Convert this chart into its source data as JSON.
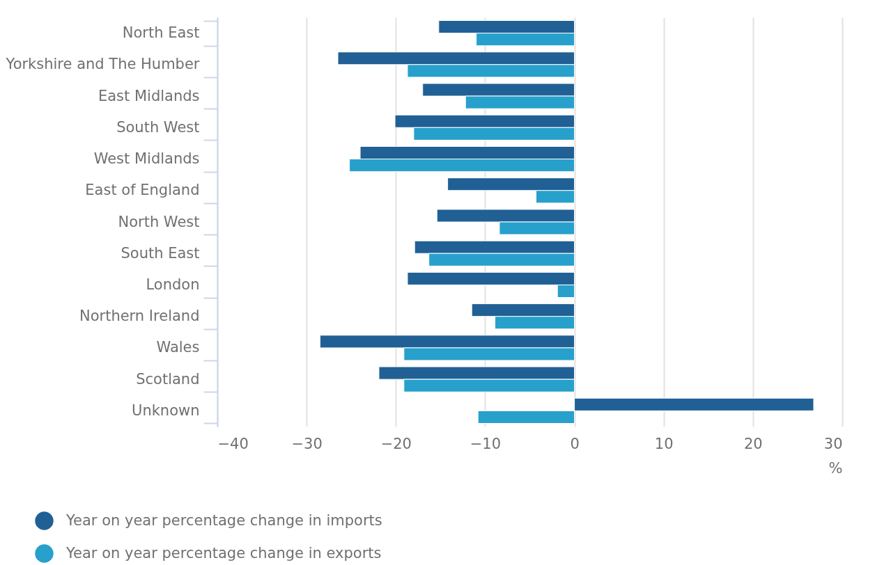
{
  "chart_data": {
    "type": "bar",
    "orientation": "horizontal",
    "xlabel": "%",
    "categories": [
      "North East",
      "Yorkshire and The Humber",
      "East Midlands",
      "South West",
      "West Midlands",
      "East of England",
      "North West",
      "South East",
      "London",
      "Northern Ireland",
      "Wales",
      "Scotland",
      "Unknown"
    ],
    "series": [
      {
        "name": "Year on year percentage change in imports",
        "color": "#206095",
        "values": [
          -15.2,
          -26.5,
          -17.0,
          -20.1,
          -24.0,
          -14.2,
          -15.4,
          -17.9,
          -18.7,
          -11.5,
          -28.5,
          -21.9,
          26.8
        ]
      },
      {
        "name": "Year on year percentage change in exports",
        "color": "#27a0cc",
        "values": [
          -11.0,
          -18.7,
          -12.2,
          -18.0,
          -25.2,
          -4.3,
          -8.4,
          -16.3,
          -1.9,
          -8.9,
          -19.1,
          -19.1,
          -10.8
        ]
      }
    ],
    "xlim": [
      -40,
      30
    ],
    "xticks": [
      -40,
      -30,
      -20,
      -10,
      0,
      10,
      20,
      30
    ],
    "grid": "x",
    "legend": "bottom left"
  }
}
